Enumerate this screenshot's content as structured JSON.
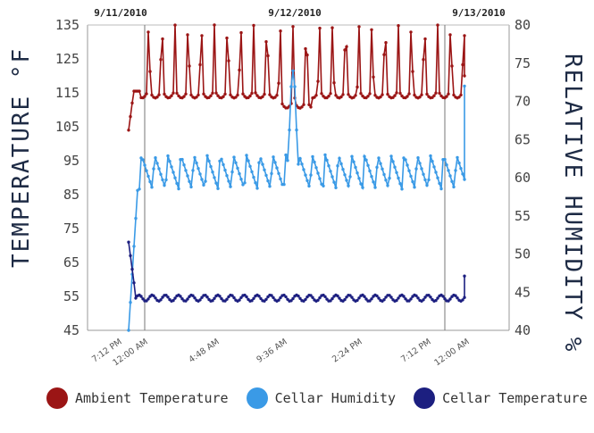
{
  "chart_data": {
    "type": "line",
    "top_dates": [
      "9/11/2010",
      "9/12/2010",
      "9/13/2010"
    ],
    "x_tick_labels": [
      "7:12 PM",
      "12:00 AM",
      "4:48 AM",
      "9:36 AM",
      "2:24 PM",
      "7:12 PM",
      "12:00 AM"
    ],
    "left_axis": {
      "title": "TEMPERATURE °F",
      "ticks": [
        45,
        55,
        65,
        75,
        85,
        95,
        105,
        115,
        125,
        135
      ],
      "range": [
        45,
        135
      ]
    },
    "right_axis": {
      "title": "RELATIVE HUMIDITY %",
      "ticks": [
        40,
        45,
        50,
        55,
        60,
        65,
        70,
        75,
        80
      ],
      "range": [
        40,
        80
      ]
    },
    "x_range_hours": [
      0,
      48
    ],
    "x_tick_hours": [
      19.2,
      24,
      28.8,
      33.6,
      38.4,
      43.2,
      48
    ],
    "series": [
      {
        "name": "Ambient Temperature",
        "color": "#9b1515",
        "axis": "left",
        "summary": {
          "start": 104,
          "baseline": 115,
          "peak": 135
        }
      },
      {
        "name": "Cellar Humidity",
        "color": "#3a9ae6",
        "axis": "right",
        "summary": {
          "start": 40,
          "baseline": 58.5,
          "peak": 63,
          "spike": 74
        }
      },
      {
        "name": "Cellar Temperature",
        "color": "#1c1f80",
        "axis": "left",
        "summary": {
          "start": 71,
          "baseline": 54.5,
          "peak": 56,
          "end": 61
        }
      }
    ],
    "legend": [
      "Ambient Temperature",
      "Cellar Humidity",
      "Cellar Temperature"
    ]
  }
}
